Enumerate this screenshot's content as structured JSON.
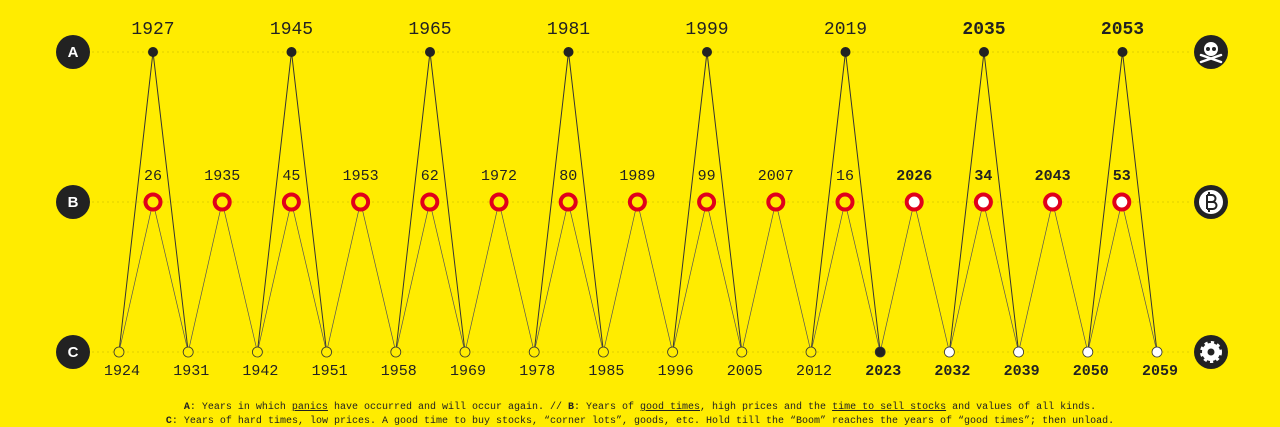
{
  "rows": [
    "A",
    "B",
    "C"
  ],
  "a_years": [
    {
      "label": "1927",
      "state": "past"
    },
    {
      "label": "1945",
      "state": "past"
    },
    {
      "label": "1965",
      "state": "past"
    },
    {
      "label": "1981",
      "state": "past"
    },
    {
      "label": "1999",
      "state": "past"
    },
    {
      "label": "2019",
      "state": "past"
    },
    {
      "label": "2035",
      "state": "future"
    },
    {
      "label": "2053",
      "state": "future"
    }
  ],
  "b_years": [
    {
      "label": "26",
      "state": "past"
    },
    {
      "label": "1935",
      "state": "past"
    },
    {
      "label": "45",
      "state": "past"
    },
    {
      "label": "1953",
      "state": "past"
    },
    {
      "label": "62",
      "state": "past"
    },
    {
      "label": "1972",
      "state": "past"
    },
    {
      "label": "80",
      "state": "past"
    },
    {
      "label": "1989",
      "state": "past"
    },
    {
      "label": "99",
      "state": "past"
    },
    {
      "label": "2007",
      "state": "past"
    },
    {
      "label": "16",
      "state": "past"
    },
    {
      "label": "2026",
      "state": "future"
    },
    {
      "label": "34",
      "state": "future"
    },
    {
      "label": "2043",
      "state": "future"
    },
    {
      "label": "53",
      "state": "future"
    }
  ],
  "c_years": [
    {
      "label": "1924",
      "state": "past"
    },
    {
      "label": "1931",
      "state": "past"
    },
    {
      "label": "1942",
      "state": "past"
    },
    {
      "label": "1951",
      "state": "past"
    },
    {
      "label": "1958",
      "state": "past"
    },
    {
      "label": "1969",
      "state": "past"
    },
    {
      "label": "1978",
      "state": "past"
    },
    {
      "label": "1985",
      "state": "past"
    },
    {
      "label": "1996",
      "state": "past"
    },
    {
      "label": "2005",
      "state": "past"
    },
    {
      "label": "2012",
      "state": "past"
    },
    {
      "label": "2023",
      "state": "present"
    },
    {
      "label": "2032",
      "state": "future"
    },
    {
      "label": "2039",
      "state": "future"
    },
    {
      "label": "2050",
      "state": "future"
    },
    {
      "label": "2059",
      "state": "future"
    }
  ],
  "legend": {
    "line1": [
      {
        "text": "A",
        "style": "bold"
      },
      {
        "text": ": Years in which "
      },
      {
        "text": "panics",
        "style": "underline"
      },
      {
        "text": " have occurred and will occur again. // "
      },
      {
        "text": "B",
        "style": "bold"
      },
      {
        "text": ": Years of "
      },
      {
        "text": "good times",
        "style": "underline"
      },
      {
        "text": ", high prices and the "
      },
      {
        "text": "time to sell stocks",
        "style": "underline"
      },
      {
        "text": " and values of all kinds."
      }
    ],
    "line2": [
      {
        "text": "C",
        "style": "bold"
      },
      {
        "text": ": Years of hard times, low prices. A good time to buy stocks, “corner lots”, goods, etc. Hold till the “Boom” reaches the years of “good times”; then unload."
      }
    ]
  }
}
